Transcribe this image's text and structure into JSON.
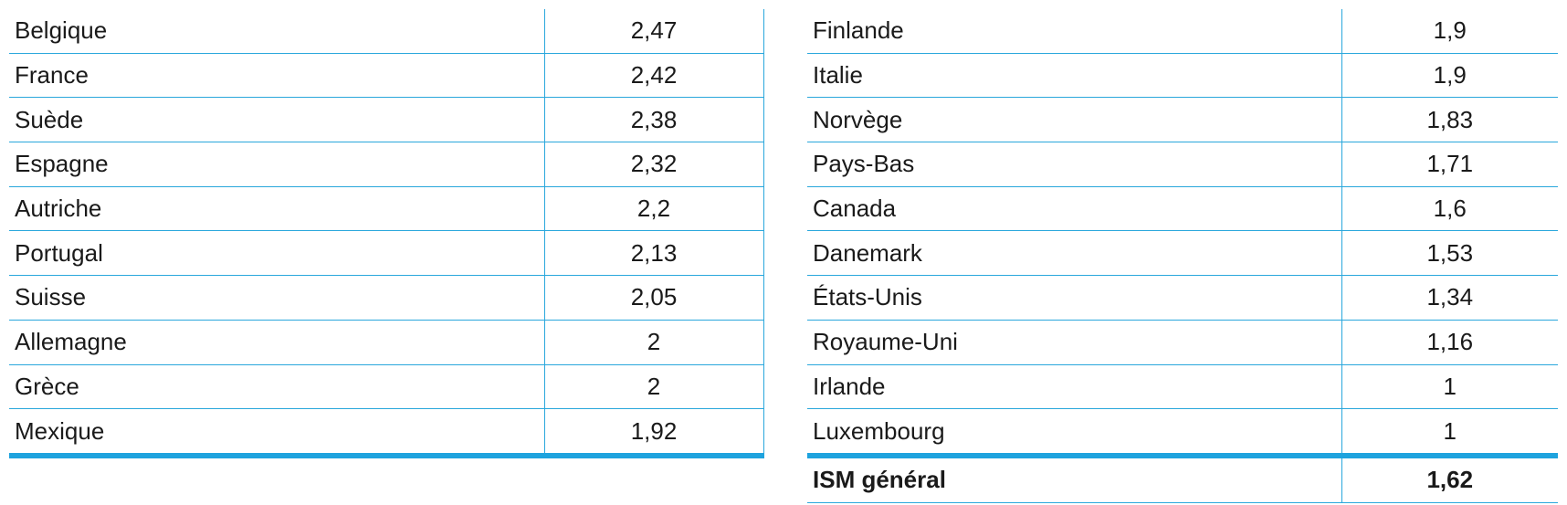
{
  "colors": {
    "rule": "#2aa7dc",
    "thick_rule": "#1ea3de",
    "text": "#1a1a1a"
  },
  "table_left": {
    "rows": [
      {
        "country": "Belgique",
        "value": "2,47"
      },
      {
        "country": "France",
        "value": "2,42"
      },
      {
        "country": "Suède",
        "value": "2,38"
      },
      {
        "country": "Espagne",
        "value": "2,32"
      },
      {
        "country": "Autriche",
        "value": "2,2"
      },
      {
        "country": "Portugal",
        "value": "2,13"
      },
      {
        "country": "Suisse",
        "value": "2,05"
      },
      {
        "country": "Allemagne",
        "value": "2"
      },
      {
        "country": "Grèce",
        "value": "2"
      },
      {
        "country": "Mexique",
        "value": "1,92"
      }
    ]
  },
  "table_right": {
    "rows": [
      {
        "country": "Finlande",
        "value": "1,9"
      },
      {
        "country": "Italie",
        "value": "1,9"
      },
      {
        "country": "Norvège",
        "value": "1,83"
      },
      {
        "country": "Pays-Bas",
        "value": "1,71"
      },
      {
        "country": "Canada",
        "value": "1,6"
      },
      {
        "country": "Danemark",
        "value": "1,53"
      },
      {
        "country": "États-Unis",
        "value": "1,34"
      },
      {
        "country": "Royaume-Uni",
        "value": "1,16"
      },
      {
        "country": "Irlande",
        "value": "1"
      },
      {
        "country": "Luxembourg",
        "value": "1"
      }
    ],
    "total": {
      "label": "ISM général",
      "value": "1,62"
    }
  }
}
